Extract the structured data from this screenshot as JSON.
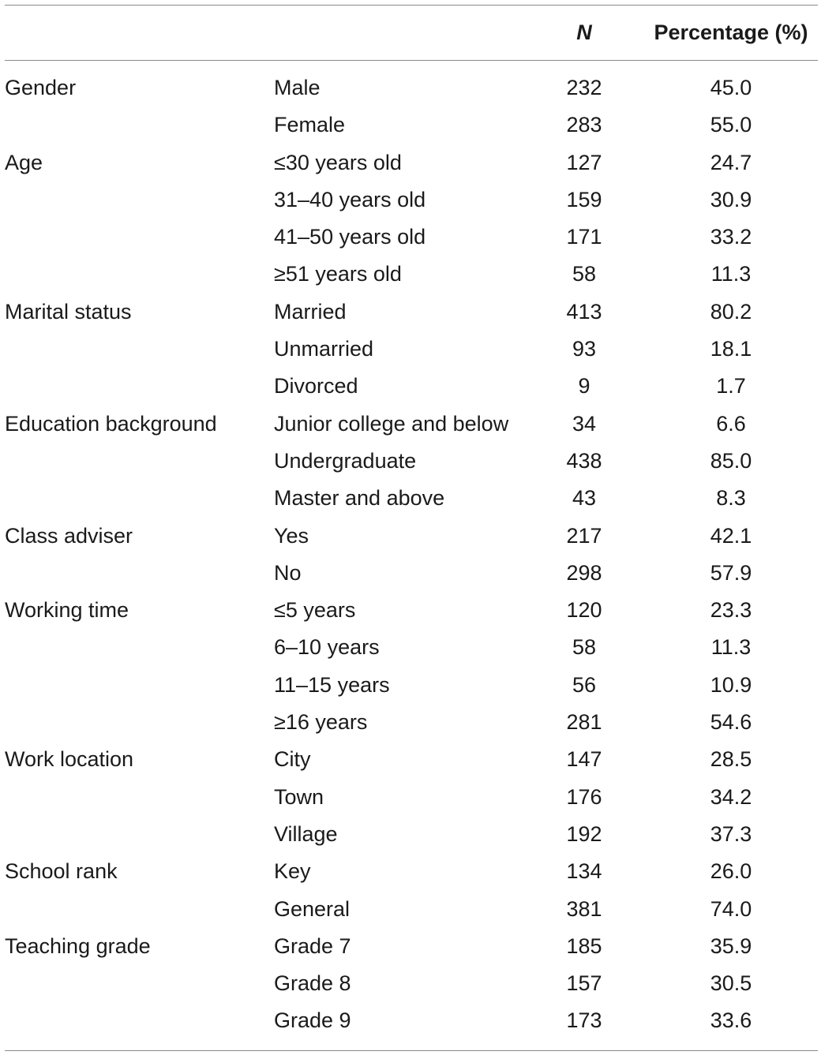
{
  "header": {
    "n": "N",
    "percentage": "Percentage (%)"
  },
  "rows": [
    {
      "category": "Gender",
      "sub": "Male",
      "n": "232",
      "pct": "45.0"
    },
    {
      "category": "",
      "sub": "Female",
      "n": "283",
      "pct": "55.0"
    },
    {
      "category": "Age",
      "sub": "≤30 years old",
      "n": "127",
      "pct": "24.7"
    },
    {
      "category": "",
      "sub": "31–40 years old",
      "n": "159",
      "pct": "30.9"
    },
    {
      "category": "",
      "sub": "41–50 years old",
      "n": "171",
      "pct": "33.2"
    },
    {
      "category": "",
      "sub": "≥51 years old",
      "n": "58",
      "pct": "11.3"
    },
    {
      "category": "Marital status",
      "sub": "Married",
      "n": "413",
      "pct": "80.2"
    },
    {
      "category": "",
      "sub": "Unmarried",
      "n": "93",
      "pct": "18.1"
    },
    {
      "category": "",
      "sub": "Divorced",
      "n": "9",
      "pct": "1.7"
    },
    {
      "category": "Education background",
      "sub": "Junior college and below",
      "n": "34",
      "pct": "6.6"
    },
    {
      "category": "",
      "sub": "Undergraduate",
      "n": "438",
      "pct": "85.0"
    },
    {
      "category": "",
      "sub": "Master and above",
      "n": "43",
      "pct": "8.3"
    },
    {
      "category": "Class adviser",
      "sub": "Yes",
      "n": "217",
      "pct": "42.1"
    },
    {
      "category": "",
      "sub": "No",
      "n": "298",
      "pct": "57.9"
    },
    {
      "category": "Working time",
      "sub": "≤5 years",
      "n": "120",
      "pct": "23.3"
    },
    {
      "category": "",
      "sub": "6–10 years",
      "n": "58",
      "pct": "11.3"
    },
    {
      "category": "",
      "sub": "11–15 years",
      "n": "56",
      "pct": "10.9"
    },
    {
      "category": "",
      "sub": "≥16 years",
      "n": "281",
      "pct": "54.6"
    },
    {
      "category": "Work location",
      "sub": "City",
      "n": "147",
      "pct": "28.5"
    },
    {
      "category": "",
      "sub": "Town",
      "n": "176",
      "pct": "34.2"
    },
    {
      "category": "",
      "sub": "Village",
      "n": "192",
      "pct": "37.3"
    },
    {
      "category": "School rank",
      "sub": "Key",
      "n": "134",
      "pct": "26.0"
    },
    {
      "category": "",
      "sub": "General",
      "n": "381",
      "pct": "74.0"
    },
    {
      "category": "Teaching grade",
      "sub": "Grade 7",
      "n": "185",
      "pct": "35.9"
    },
    {
      "category": "",
      "sub": "Grade 8",
      "n": "157",
      "pct": "30.5"
    },
    {
      "category": "",
      "sub": "Grade 9",
      "n": "173",
      "pct": "33.6"
    }
  ]
}
